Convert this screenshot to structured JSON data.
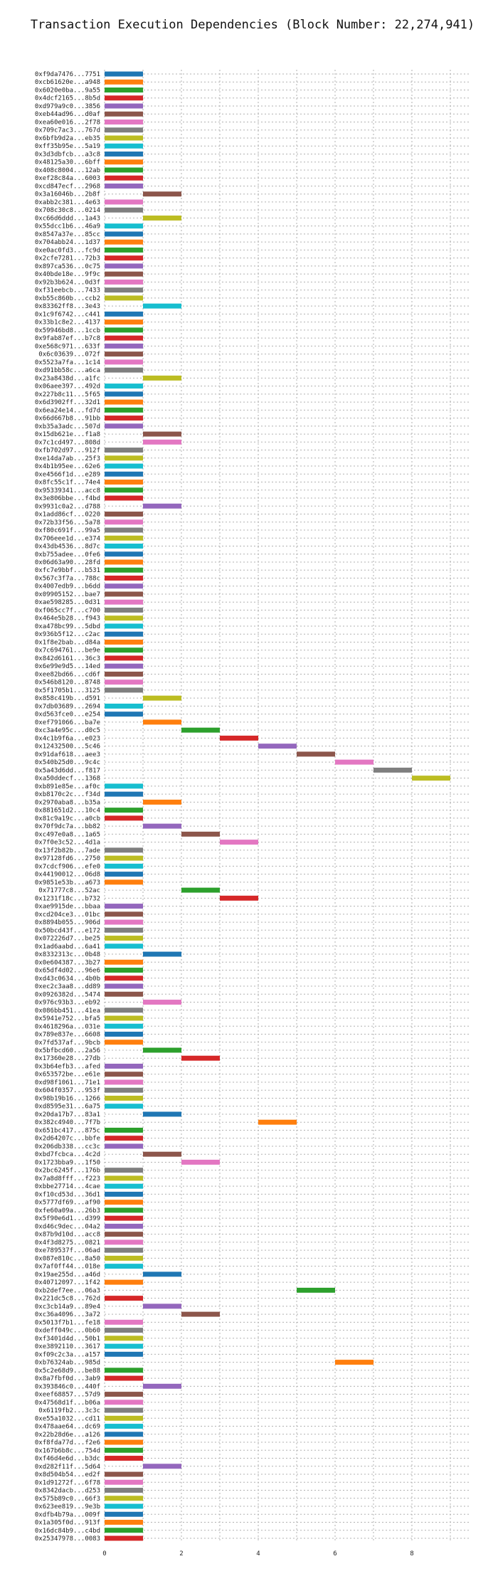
{
  "chart_data": {
    "type": "bar",
    "orientation": "gantt",
    "title": "Transaction Execution Dependencies (Block Number: 22,274,941)",
    "xlabel": "",
    "ylabel": "",
    "xlim": [
      0,
      9.5
    ],
    "x_ticks": [
      0,
      2,
      4,
      6,
      8
    ],
    "grid": true,
    "palette": [
      "#1f77b4",
      "#ff7f0e",
      "#2ca02c",
      "#d62728",
      "#9467bd",
      "#8c564b",
      "#e377c2",
      "#7f7f7f",
      "#bcbd22",
      "#17becf"
    ],
    "transactions": [
      {
        "label": "0xf9da7476...7751",
        "start": 0
      },
      {
        "label": "0xcb61620e...a948",
        "start": 0
      },
      {
        "label": "0x6020e0ba...9a55",
        "start": 0
      },
      {
        "label": "0x4dcf2165...8b5d",
        "start": 0
      },
      {
        "label": "0xd979a9c0...3856",
        "start": 0
      },
      {
        "label": "0xeb44ad96...d0af",
        "start": 0
      },
      {
        "label": "0xea60e016...2f78",
        "start": 0
      },
      {
        "label": "0x709c7ac3...767d",
        "start": 0
      },
      {
        "label": "0x6bfb9d2a...eb35",
        "start": 0
      },
      {
        "label": "0xff35b95e...5a19",
        "start": 0
      },
      {
        "label": "0x3d3dbfcb...a3c8",
        "start": 0
      },
      {
        "label": "0x48125a30...6bff",
        "start": 0
      },
      {
        "label": "0x408c8004...12ab",
        "start": 0
      },
      {
        "label": "0xef28c84a...6003",
        "start": 0
      },
      {
        "label": "0xcd847ecf...2968",
        "start": 0
      },
      {
        "label": "0x3a16046b...2b8f",
        "start": 1
      },
      {
        "label": "0xabb2c381...4e63",
        "start": 0
      },
      {
        "label": "0x708c30c8...0214",
        "start": 0
      },
      {
        "label": "0xc66d6ddd...1a43",
        "start": 1
      },
      {
        "label": "0x55dcc1b6...46a9",
        "start": 0
      },
      {
        "label": "0x8547a37e...85cc",
        "start": 0
      },
      {
        "label": "0x704abb24...1d37",
        "start": 0
      },
      {
        "label": "0xe0ac0fd3...fc9d",
        "start": 0
      },
      {
        "label": "0x2cfe7281...72b3",
        "start": 0
      },
      {
        "label": "0x897ca536...0c75",
        "start": 0
      },
      {
        "label": "0x40bde18e...9f9c",
        "start": 0
      },
      {
        "label": "0x92b3b624...0d3f",
        "start": 0
      },
      {
        "label": "0xf31eebcb...7433",
        "start": 0
      },
      {
        "label": "0xb55c860b...ccb2",
        "start": 0
      },
      {
        "label": "0x83362ff8...3e43",
        "start": 1
      },
      {
        "label": "0x1c9f6742...c441",
        "start": 0
      },
      {
        "label": "0x33b1c8e2...4137",
        "start": 0
      },
      {
        "label": "0x59946bd8...1ccb",
        "start": 0
      },
      {
        "label": "0x9fab87ef...b7c8",
        "start": 0
      },
      {
        "label": "0xe568c971...633f",
        "start": 0
      },
      {
        "label": "0x6c03639...072f",
        "start": 0
      },
      {
        "label": "0x5523a7fa...1c14",
        "start": 0
      },
      {
        "label": "0xd91bb58c...a6ca",
        "start": 0
      },
      {
        "label": "0x23a8438d...a1fc",
        "start": 1
      },
      {
        "label": "0x06aee397...492d",
        "start": 0
      },
      {
        "label": "0x227b8c11...5f65",
        "start": 0
      },
      {
        "label": "0x6d3902ff...32d1",
        "start": 0
      },
      {
        "label": "0x6ea24e14...fd7d",
        "start": 0
      },
      {
        "label": "0x66d667b8...91bb",
        "start": 0
      },
      {
        "label": "0xb35a3adc...507d",
        "start": 0
      },
      {
        "label": "0x15db621e...f1a8",
        "start": 1
      },
      {
        "label": "0x7c1cd497...808d",
        "start": 1
      },
      {
        "label": "0xfb702d97...912f",
        "start": 0
      },
      {
        "label": "0xe14da7ab...25f3",
        "start": 0
      },
      {
        "label": "0x4b1b95ee...62e6",
        "start": 0
      },
      {
        "label": "0xe4566f1d...e289",
        "start": 0
      },
      {
        "label": "0x8fc55c1f...74e4",
        "start": 0
      },
      {
        "label": "0x95339341...acc8",
        "start": 0
      },
      {
        "label": "0x3e806bbe...f4bd",
        "start": 0
      },
      {
        "label": "0x9931c0a2...d788",
        "start": 1
      },
      {
        "label": "0x1add86cf...0220",
        "start": 0
      },
      {
        "label": "0x72b33f56...5a78",
        "start": 0
      },
      {
        "label": "0xf80c691f...99a5",
        "start": 0
      },
      {
        "label": "0x706eee1d...e374",
        "start": 0
      },
      {
        "label": "0x43db4536...8d7c",
        "start": 0
      },
      {
        "label": "0xb755adee...0fe6",
        "start": 0
      },
      {
        "label": "0x06d63a90...28fd",
        "start": 0
      },
      {
        "label": "0xfc7e9bbf...b531",
        "start": 0
      },
      {
        "label": "0x567c3f7a...788c",
        "start": 0
      },
      {
        "label": "0x4007edb9...b6dd",
        "start": 0
      },
      {
        "label": "0x09905152...bae7",
        "start": 0
      },
      {
        "label": "0xae598285...0d31",
        "start": 0
      },
      {
        "label": "0xf065cc7f...c700",
        "start": 0
      },
      {
        "label": "0x464e5b28...f943",
        "start": 0
      },
      {
        "label": "0xa478bc99...5dbd",
        "start": 0
      },
      {
        "label": "0x936b5f12...c2ac",
        "start": 0
      },
      {
        "label": "0x1f8e2bab...d84a",
        "start": 0
      },
      {
        "label": "0x7c694761...be9e",
        "start": 0
      },
      {
        "label": "0x842d6161...36c3",
        "start": 0
      },
      {
        "label": "0x6e99e9d5...14ed",
        "start": 0
      },
      {
        "label": "0xee82bd66...cd6f",
        "start": 0
      },
      {
        "label": "0x546b8120...8748",
        "start": 0
      },
      {
        "label": "0x5f1705b1...3125",
        "start": 0
      },
      {
        "label": "0x858c419b...d591",
        "start": 1
      },
      {
        "label": "0x7db03689...2694",
        "start": 0
      },
      {
        "label": "0xd563fce0...e254",
        "start": 0
      },
      {
        "label": "0xef791066...ba7e",
        "start": 1
      },
      {
        "label": "0xc3a4e95c...d0c5",
        "start": 2
      },
      {
        "label": "0x4c1b9f6a...e023",
        "start": 3
      },
      {
        "label": "0x12432500...5c46",
        "start": 4
      },
      {
        "label": "0x91daf618...aee3",
        "start": 5
      },
      {
        "label": "0x540b25d0...9c4c",
        "start": 6
      },
      {
        "label": "0x5a43d6dd...f817",
        "start": 7
      },
      {
        "label": "0xa50ddecf...1368",
        "start": 8
      },
      {
        "label": "0xb891e85e...af0c",
        "start": 0
      },
      {
        "label": "0xb8170c2c...f34d",
        "start": 0
      },
      {
        "label": "0x2970aba8...b35a",
        "start": 1
      },
      {
        "label": "0x881651d2...10c4",
        "start": 0
      },
      {
        "label": "0x81c9a19c...a0cb",
        "start": 0
      },
      {
        "label": "0x70f9dc7a...bb82",
        "start": 1
      },
      {
        "label": "0xc497e0a8...1a65",
        "start": 2
      },
      {
        "label": "0x7f0e3c52...4d1a",
        "start": 3
      },
      {
        "label": "0x13f2b82b...7ade",
        "start": 0
      },
      {
        "label": "0x97128fd6...2750",
        "start": 0
      },
      {
        "label": "0x7cdcf906...efe0",
        "start": 0
      },
      {
        "label": "0x44190012...06d8",
        "start": 0
      },
      {
        "label": "0x9851e53b...a673",
        "start": 0
      },
      {
        "label": "0x71777c8...52ac",
        "start": 2
      },
      {
        "label": "0x1231f18c...b732",
        "start": 3
      },
      {
        "label": "0xae9915de...bbaa",
        "start": 0
      },
      {
        "label": "0xcd204ce3...01bc",
        "start": 0
      },
      {
        "label": "0x8894b055...906d",
        "start": 0
      },
      {
        "label": "0x50bcd43f...e172",
        "start": 0
      },
      {
        "label": "0x072226d7...be25",
        "start": 0
      },
      {
        "label": "0x1ad6aabd...6a41",
        "start": 0
      },
      {
        "label": "0x8332313c...0b48",
        "start": 1
      },
      {
        "label": "0x0e604387...3b27",
        "start": 0
      },
      {
        "label": "0x65df4d02...96e6",
        "start": 0
      },
      {
        "label": "0xd43c0634...4b0b",
        "start": 0
      },
      {
        "label": "0xec2c3aa8...dd89",
        "start": 0
      },
      {
        "label": "0x0926382d...5474",
        "start": 0
      },
      {
        "label": "0x976c93b3...eb92",
        "start": 1
      },
      {
        "label": "0x086bb451...41ea",
        "start": 0
      },
      {
        "label": "0x5941e752...bfa5",
        "start": 0
      },
      {
        "label": "0x4618296a...031e",
        "start": 0
      },
      {
        "label": "0x789e837e...6608",
        "start": 0
      },
      {
        "label": "0x7fd537af...9bcb",
        "start": 0
      },
      {
        "label": "0x5bfbcd60...2a56",
        "start": 1
      },
      {
        "label": "0x17360e28...27db",
        "start": 2
      },
      {
        "label": "0x3b64efb3...afed",
        "start": 0
      },
      {
        "label": "0x653572be...e61e",
        "start": 0
      },
      {
        "label": "0xd98f1061...71e1",
        "start": 0
      },
      {
        "label": "0x604f0357...953f",
        "start": 0
      },
      {
        "label": "0x98b19b16...1266",
        "start": 0
      },
      {
        "label": "0xd8595e31...6a75",
        "start": 0
      },
      {
        "label": "0x20da17b7...83a1",
        "start": 1
      },
      {
        "label": "0x382c4940...7f7b",
        "start": 4
      },
      {
        "label": "0x651bc417...875c",
        "start": 0
      },
      {
        "label": "0x2d64207c...bbfe",
        "start": 0
      },
      {
        "label": "0x206db338...cc3c",
        "start": 0
      },
      {
        "label": "0xbd7fcbca...4c2d",
        "start": 1
      },
      {
        "label": "0x1723bba9...1f50",
        "start": 2
      },
      {
        "label": "0x2bc6245f...176b",
        "start": 0
      },
      {
        "label": "0x7a8d8fff...f223",
        "start": 0
      },
      {
        "label": "0xbbe27714...4cae",
        "start": 0
      },
      {
        "label": "0xf10cd53d...36d1",
        "start": 0
      },
      {
        "label": "0x5777df69...af90",
        "start": 0
      },
      {
        "label": "0xfe60a09a...26b3",
        "start": 0
      },
      {
        "label": "0x5f90e6d1...d399",
        "start": 0
      },
      {
        "label": "0xd46c9dec...04a2",
        "start": 0
      },
      {
        "label": "0x87b9d10d...acc8",
        "start": 0
      },
      {
        "label": "0x4f3d8275...0821",
        "start": 0
      },
      {
        "label": "0xe789537f...06ad",
        "start": 0
      },
      {
        "label": "0x087e810c...8a50",
        "start": 0
      },
      {
        "label": "0x7af0ff44...018e",
        "start": 0
      },
      {
        "label": "0x19ae255d...a46d",
        "start": 1
      },
      {
        "label": "0x40712097...1f42",
        "start": 0
      },
      {
        "label": "0xb2def7ee...06a3",
        "start": 5
      },
      {
        "label": "0x221dc5c8...762d",
        "start": 0
      },
      {
        "label": "0xc3cb14a9...89e4",
        "start": 1
      },
      {
        "label": "0xc36a4096...3a72",
        "start": 2
      },
      {
        "label": "0x5013f7b1...fe18",
        "start": 0
      },
      {
        "label": "0xdeff049c...0b60",
        "start": 0
      },
      {
        "label": "0xf3401d4d...50b1",
        "start": 0
      },
      {
        "label": "0xe3892110...3617",
        "start": 0
      },
      {
        "label": "0xf09c2c3a...a157",
        "start": 0
      },
      {
        "label": "0xb76324ab...985d",
        "start": 6
      },
      {
        "label": "0x5c2e68d9...be88",
        "start": 0
      },
      {
        "label": "0x8a7fbf0d...3ab9",
        "start": 0
      },
      {
        "label": "0x393846c0...440f",
        "start": 1
      },
      {
        "label": "0xeef68857...57d9",
        "start": 0
      },
      {
        "label": "0x47568d1f...b06a",
        "start": 0
      },
      {
        "label": "0x6119fb2...3c3c",
        "start": 0
      },
      {
        "label": "0xe55a1032...cd11",
        "start": 0
      },
      {
        "label": "0x478aae64...dc69",
        "start": 0
      },
      {
        "label": "0x22b28d6e...a126",
        "start": 0
      },
      {
        "label": "0xf8fda77d...f2e6",
        "start": 0
      },
      {
        "label": "0x167b6b8c...754d",
        "start": 0
      },
      {
        "label": "0xf46d4e6d...b3dc",
        "start": 0
      },
      {
        "label": "0xd282f11f...5d64",
        "start": 1
      },
      {
        "label": "0x8d504b54...ed2f",
        "start": 0
      },
      {
        "label": "0x1d91272f...6f78",
        "start": 0
      },
      {
        "label": "0x8342dacb...d253",
        "start": 0
      },
      {
        "label": "0x575b89c0...66f3",
        "start": 0
      },
      {
        "label": "0x623ee819...9e3b",
        "start": 0
      },
      {
        "label": "0xdfb4b79a...009f",
        "start": 0
      },
      {
        "label": "0x1a305f0d...913f",
        "start": 0
      },
      {
        "label": "0x16dc84b9...c4bd",
        "start": 0
      },
      {
        "label": "0x25347978...0083",
        "start": 0
      }
    ]
  }
}
